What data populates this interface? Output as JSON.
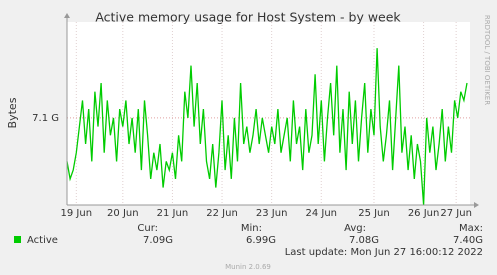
{
  "chart_data": {
    "type": "line",
    "title": "Active memory usage for Host System - by week",
    "y_label": "Bytes",
    "side_note": "RRDTOOL / TOBI OETIKER",
    "xlim": [
      0,
      129
    ],
    "xticks": [
      {
        "value": 3,
        "label": "19 Jun"
      },
      {
        "value": 18,
        "label": "20 Jun"
      },
      {
        "value": 34,
        "label": "21 Jun"
      },
      {
        "value": 50,
        "label": "22 Jun"
      },
      {
        "value": 66,
        "label": "23 Jun"
      },
      {
        "value": 82,
        "label": "24 Jun"
      },
      {
        "value": 99,
        "label": "25 Jun"
      },
      {
        "value": 115,
        "label": "26 Jun"
      },
      {
        "value": 125.5,
        "label": "27 Jun"
      }
    ],
    "ylim": [
      7.0,
      7.21
    ],
    "yticks": [
      {
        "value": 7.1,
        "label": "7.1 G"
      }
    ],
    "grid": true,
    "series": [
      {
        "name": "Active",
        "color": "#00cc00",
        "values": [
          7.05,
          7.03,
          7.04,
          7.06,
          7.09,
          7.12,
          7.07,
          7.11,
          7.05,
          7.13,
          7.09,
          7.14,
          7.06,
          7.12,
          7.08,
          7.1,
          7.05,
          7.11,
          7.09,
          7.12,
          7.07,
          7.1,
          7.06,
          7.11,
          7.04,
          7.12,
          7.08,
          7.03,
          7.06,
          7.04,
          7.07,
          7.02,
          7.05,
          7.04,
          7.06,
          7.03,
          7.08,
          7.05,
          7.13,
          7.1,
          7.16,
          7.09,
          7.14,
          7.07,
          7.11,
          7.05,
          7.03,
          7.07,
          7.02,
          7.06,
          7.12,
          7.04,
          7.08,
          7.03,
          7.1,
          7.05,
          7.14,
          7.07,
          7.09,
          7.06,
          7.08,
          7.11,
          7.07,
          7.1,
          7.08,
          7.06,
          7.09,
          7.07,
          7.11,
          7.06,
          7.08,
          7.1,
          7.05,
          7.12,
          7.07,
          7.09,
          7.04,
          7.11,
          7.06,
          7.08,
          7.15,
          7.07,
          7.12,
          7.05,
          7.1,
          7.14,
          7.08,
          7.16,
          7.06,
          7.11,
          7.04,
          7.13,
          7.07,
          7.12,
          7.05,
          7.1,
          7.14,
          7.06,
          7.11,
          7.08,
          7.18,
          7.09,
          7.05,
          7.08,
          7.12,
          7.04,
          7.1,
          7.16,
          7.06,
          7.09,
          7.04,
          7.08,
          7.03,
          7.07,
          7.05,
          7.0,
          7.1,
          7.06,
          7.09,
          7.04,
          7.07,
          7.11,
          7.05,
          7.09,
          7.06,
          7.12,
          7.1,
          7.13,
          7.12,
          7.14
        ]
      }
    ],
    "stats": {
      "headers": [
        "Cur:",
        "Min:",
        "Avg:",
        "Max:"
      ],
      "values": [
        "7.09G",
        "6.99G",
        "7.08G",
        "7.40G"
      ]
    },
    "last_update": "Last update: Mon Jun 27 16:00:12 2022",
    "footer": "Munin 2.0.69"
  }
}
